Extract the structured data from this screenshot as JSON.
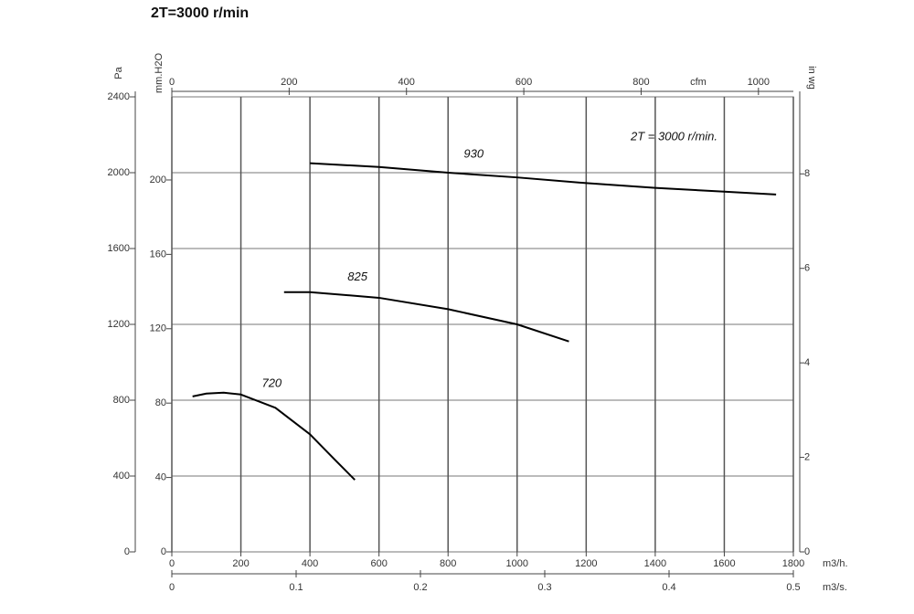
{
  "chart_data": {
    "type": "line",
    "title": "2T=3000 r/min",
    "annotation": "2T = 3000 r/min.",
    "xlim": [
      0,
      1800
    ],
    "xticks": [
      0,
      200,
      400,
      600,
      800,
      1000,
      1200,
      1400,
      1600,
      1800
    ],
    "x_label": "m3/h.",
    "x2lim": [
      0,
      0.5
    ],
    "x2ticks": [
      0,
      0.1,
      0.2,
      0.3,
      0.4,
      0.5
    ],
    "x2_label": "m3/s.",
    "x3lim": [
      0,
      1059.5
    ],
    "x3ticks": [
      0,
      200,
      400,
      600,
      800,
      1000
    ],
    "x3_label": "cfm",
    "ylim": [
      0,
      2400
    ],
    "yticks": [
      0,
      400,
      800,
      1200,
      1600,
      2000,
      2400
    ],
    "y_label": "Pa",
    "y2lim": [
      0,
      244.7
    ],
    "y2ticks": [
      0,
      40,
      80,
      120,
      160,
      200
    ],
    "y2_label": "mm.H2O",
    "y3lim": [
      0,
      9.63
    ],
    "y3ticks": [
      0,
      2,
      4,
      6,
      8
    ],
    "y3_label": "in wg",
    "grid": true,
    "series": [
      {
        "name": "930",
        "color": "#000000",
        "x": [
          400,
          600,
          800,
          1000,
          1200,
          1400,
          1600,
          1750
        ],
        "values": [
          2050,
          2030,
          2000,
          1975,
          1945,
          1920,
          1900,
          1885
        ]
      },
      {
        "name": "825",
        "color": "#000000",
        "x": [
          325,
          400,
          600,
          800,
          1000,
          1150
        ],
        "values": [
          1370,
          1370,
          1340,
          1280,
          1200,
          1110
        ]
      },
      {
        "name": "720",
        "color": "#000000",
        "x": [
          60,
          100,
          150,
          200,
          300,
          400,
          470,
          530
        ],
        "values": [
          820,
          835,
          840,
          830,
          760,
          620,
          490,
          380
        ]
      }
    ]
  }
}
